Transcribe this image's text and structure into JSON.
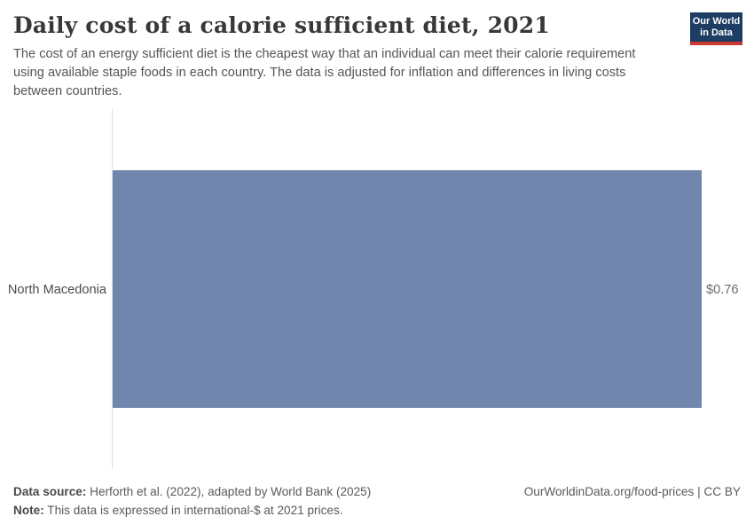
{
  "header": {
    "title": "Daily cost of a calorie sufficient diet, 2021",
    "subtitle": "The cost of an energy sufficient diet is the cheapest way that an individual can meet their calorie requirement using available staple foods in each country. The data is adjusted for inflation and differences in living costs between countries.",
    "logo": {
      "line1": "Our World",
      "line2": "in Data"
    }
  },
  "chart_data": {
    "type": "bar",
    "orientation": "horizontal",
    "title": "Daily cost of a calorie sufficient diet, 2021",
    "categories": [
      "North Macedonia"
    ],
    "values": [
      0.76
    ],
    "value_labels": [
      "$0.76"
    ],
    "unit": "international-$ per day",
    "xlabel": "",
    "ylabel": "",
    "xlim": [
      0,
      0.76
    ],
    "grid": false,
    "legend": false,
    "bar_color": "#7086ad"
  },
  "footer": {
    "data_source_label": "Data source:",
    "data_source_text": " Herforth et al. (2022), adapted by World Bank (2025)",
    "note_label": "Note:",
    "note_text": " This data is expressed in international-$ at 2021 prices.",
    "link_text": "OurWorldinData.org/food-prices | CC BY"
  },
  "colors": {
    "bar": "#7086ad",
    "logo_navy": "#1d3d63",
    "logo_red": "#c93b32",
    "axis_line": "#dedede",
    "title_text": "#383838",
    "subtitle_text": "#555555"
  }
}
